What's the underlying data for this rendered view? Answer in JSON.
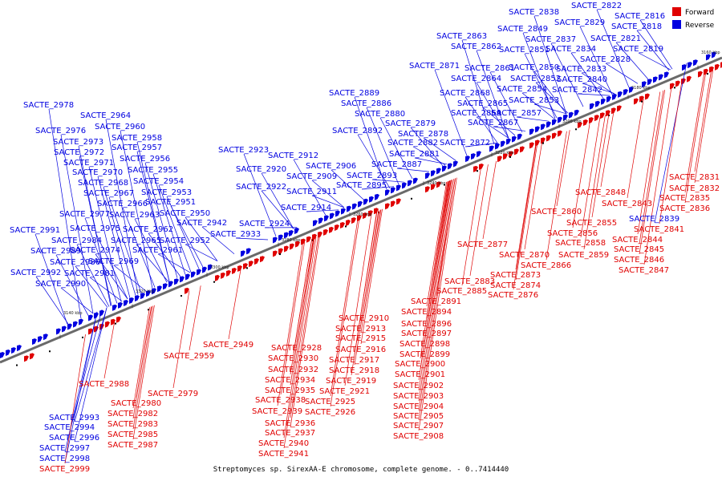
{
  "caption": "Streptomyces sp. SirexAA-E chromosome, complete genome. - 0..7414440",
  "legend": {
    "forward": "Forward",
    "reverse": "Reverse"
  },
  "colors": {
    "forward": "#e00000",
    "reverse": "#0000e0",
    "neutral": "#000000",
    "axis": "#777777"
  },
  "ticks": [
    "3140 kbp",
    "3160 kbp",
    "3180 kbp",
    "3200 kbp",
    "3220 kbp",
    "3240 kbp",
    "3260 kbp",
    "3280 kbp",
    "3300 kbp",
    "3320 kbp"
  ],
  "reverse_genes": [
    "SACTE_2822",
    "SACTE_2838",
    "SACTE_2829",
    "SACTE_2816",
    "SACTE_2849",
    "SACTE_2818",
    "SACTE_2863",
    "SACTE_2837",
    "SACTE_2821",
    "SACTE_2862",
    "SACTE_2851",
    "SACTE_2834",
    "SACTE_2819",
    "SACTE_2828",
    "SACTE_2871",
    "SACTE_2861",
    "SACTE_2850",
    "SACTE_2833",
    "SACTE_2864",
    "SACTE_2852",
    "SACTE_2840",
    "SACTE_2889",
    "SACTE_2854",
    "SACTE_2842",
    "SACTE_2868",
    "SACTE_2886",
    "SACTE_2865",
    "SACTE_2853",
    "SACTE_2978",
    "SACTE_2880",
    "SACTE_2869",
    "SACTE_2857",
    "SACTE_2964",
    "SACTE_2879",
    "SACTE_2867",
    "SACTE_2960",
    "SACTE_2976",
    "SACTE_2892",
    "SACTE_2878",
    "SACTE_2872",
    "SACTE_2958",
    "SACTE_2973",
    "SACTE_2882",
    "SACTE_2957",
    "SACTE_2972",
    "SACTE_2923",
    "SACTE_2881",
    "SACTE_2956",
    "SACTE_2912",
    "SACTE_2971",
    "SACTE_2887",
    "SACTE_2906",
    "SACTE_2955",
    "SACTE_2970",
    "SACTE_2920",
    "SACTE_2893",
    "SACTE_2909",
    "SACTE_2954",
    "SACTE_2968",
    "SACTE_2895",
    "SACTE_2953",
    "SACTE_2922",
    "SACTE_2967",
    "SACTE_2911",
    "SACTE_2966",
    "SACTE_2951",
    "SACTE_2914",
    "SACTE_2977",
    "SACTE_2963",
    "SACTE_2950",
    "SACTE_2942",
    "SACTE_2924",
    "SACTE_2991",
    "SACTE_2975",
    "SACTE_2962",
    "SACTE_2933",
    "SACTE_2984",
    "SACTE_2965",
    "SACTE_2952",
    "SACTE_2989",
    "SACTE_2974",
    "SACTE_2961",
    "SACTE_2986",
    "SACTE_2969",
    "SACTE_2992",
    "SACTE_2981",
    "SACTE_2990",
    "SACTE_2839",
    "SACTE_2993",
    "SACTE_2994",
    "SACTE_2996",
    "SACTE_2997",
    "SACTE_2998"
  ],
  "forward_genes": [
    "SACTE_2831",
    "SACTE_2832",
    "SACTE_2848",
    "SACTE_2835",
    "SACTE_2843",
    "SACTE_2836",
    "SACTE_2860",
    "SACTE_2855",
    "SACTE_2841",
    "SACTE_2856",
    "SACTE_2844",
    "SACTE_2858",
    "SACTE_2877",
    "SACTE_2845",
    "SACTE_2870",
    "SACTE_2859",
    "SACTE_2846",
    "SACTE_2866",
    "SACTE_2847",
    "SACTE_2873",
    "SACTE_2883",
    "SACTE_2874",
    "SACTE_2885",
    "SACTE_2876",
    "SACTE_2891",
    "SACTE_2894",
    "SACTE_2910",
    "SACTE_2896",
    "SACTE_2913",
    "SACTE_2897",
    "SACTE_2949",
    "SACTE_2915",
    "SACTE_2898",
    "SACTE_2928",
    "SACTE_2916",
    "SACTE_2899",
    "SACTE_2959",
    "SACTE_2930",
    "SACTE_2917",
    "SACTE_2900",
    "SACTE_2932",
    "SACTE_2918",
    "SACTE_2901",
    "SACTE_2934",
    "SACTE_2919",
    "SACTE_2988",
    "SACTE_2935",
    "SACTE_2921",
    "SACTE_2902",
    "SACTE_2979",
    "SACTE_2938",
    "SACTE_2925",
    "SACTE_2903",
    "SACTE_2980",
    "SACTE_2939",
    "SACTE_2926",
    "SACTE_2904",
    "SACTE_2982",
    "SACTE_2936",
    "SACTE_2905",
    "SACTE_2983",
    "SACTE_2937",
    "SACTE_2907",
    "SACTE_2985",
    "SACTE_2908",
    "SACTE_2987",
    "SACTE_2940",
    "SACTE_2941",
    "SACTE_2999"
  ]
}
